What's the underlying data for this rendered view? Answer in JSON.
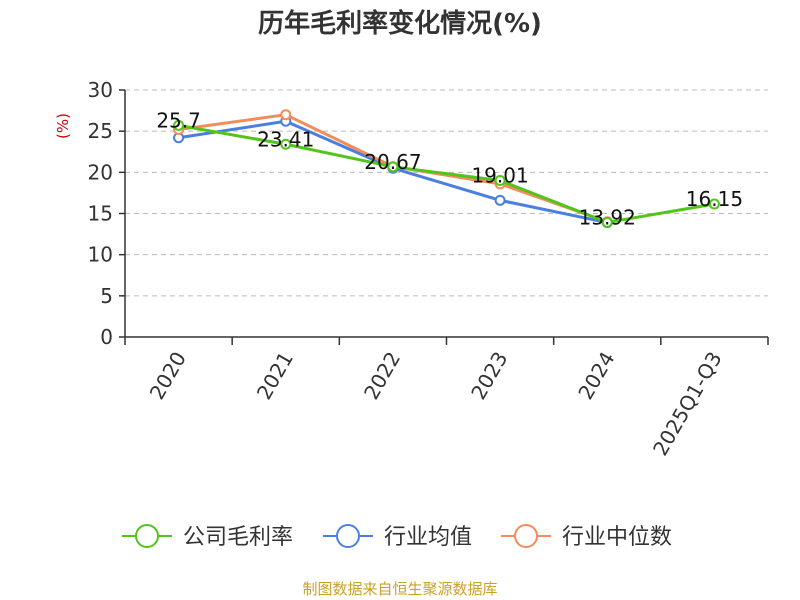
{
  "chart_data": {
    "type": "line",
    "title": "历年毛利率变化情况(%)",
    "ylabel": "(%)",
    "xlabel": "",
    "categories": [
      "2020",
      "2021",
      "2022",
      "2023",
      "2024",
      "2025Q1-Q3"
    ],
    "yticks": [
      "0",
      "5",
      "10",
      "15",
      "20",
      "25",
      "30"
    ],
    "ylim": [
      0,
      30
    ],
    "grid": "horizontal dashed",
    "legend_position": "bottom",
    "series": [
      {
        "name": "公司毛利率",
        "color": "#52c41a",
        "values": [
          25.7,
          23.41,
          20.67,
          19.01,
          13.92,
          16.15
        ],
        "labels": [
          "25.7",
          "23.41",
          "20.67",
          "19.01",
          "13.92",
          "16.15"
        ]
      },
      {
        "name": "行业均值",
        "color": "#4a7fe0",
        "values": [
          24.2,
          26.2,
          20.5,
          16.6,
          13.9,
          null
        ]
      },
      {
        "name": "行业中位数",
        "color": "#f28c5a",
        "values": [
          25.2,
          27.0,
          20.7,
          18.6,
          14.0,
          null
        ]
      }
    ]
  },
  "footer": {
    "source": "制图数据来自恒生聚源数据库"
  }
}
